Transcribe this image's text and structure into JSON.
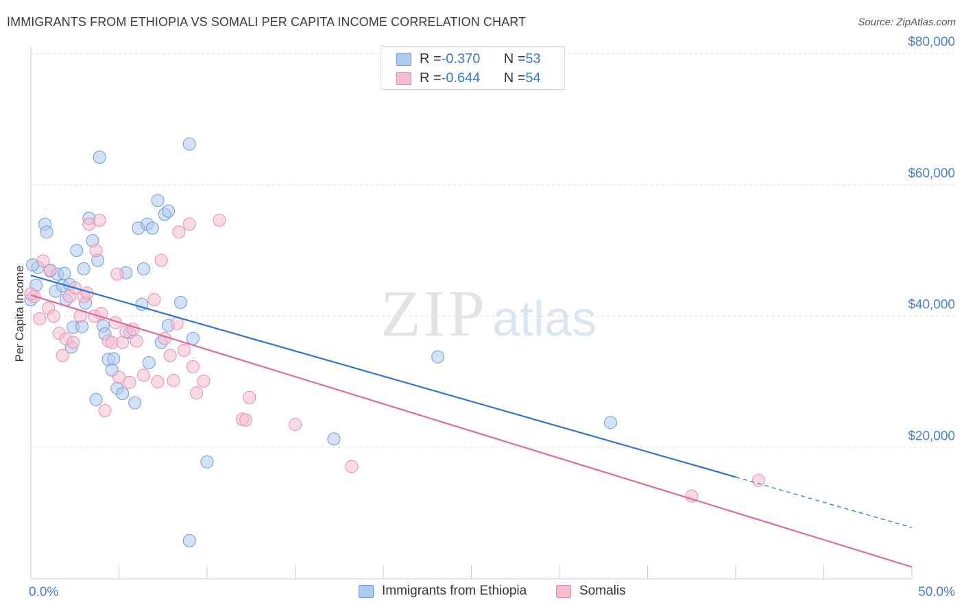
{
  "header": {
    "title": "IMMIGRANTS FROM ETHIOPIA VS SOMALI PER CAPITA INCOME CORRELATION CHART",
    "source": "Source: ZipAtlas.com"
  },
  "watermark": {
    "zip": "ZIP",
    "atlas": "atlas"
  },
  "legend": {
    "rows": [
      {
        "r_label": "R = ",
        "r_value": "-0.370",
        "n_label": "N = ",
        "n_value": "53"
      },
      {
        "r_label": "R = ",
        "r_value": "-0.644",
        "n_label": "N = ",
        "n_value": "54"
      }
    ]
  },
  "colors": {
    "ethiopia_fill": "#aecbf0",
    "ethiopia_stroke": "#6c9bd6",
    "ethiopia_line": "#2e74cf",
    "somali_fill": "#f6bcd0",
    "somali_stroke": "#e98aad",
    "somali_line": "#e06a93",
    "tick_text": "#4a7ec6",
    "grid": "#dddddd"
  },
  "chart_data": {
    "type": "scatter",
    "title": "IMMIGRANTS FROM ETHIOPIA VS SOMALI PER CAPITA INCOME CORRELATION CHART",
    "xlabel": "",
    "ylabel": "Per Capita Income",
    "xlim": [
      0,
      50
    ],
    "ylim": [
      0,
      80000
    ],
    "x_tick_labels": [
      "0.0%",
      "50.0%"
    ],
    "y_ticks": [
      20000,
      40000,
      60000,
      80000
    ],
    "y_tick_labels": [
      "$20,000",
      "$40,000",
      "$60,000",
      "$80,000"
    ],
    "grid": true,
    "legend_position": "top-center",
    "series": [
      {
        "name": "Immigrants from Ethiopia",
        "color": "#6c9bd6",
        "r": -0.37,
        "n": 53,
        "trend": {
          "x0": 0,
          "y0": 46200,
          "x1": 40,
          "y1": 15500,
          "dashed_to_x": 50,
          "dashed_to_y": 7800
        },
        "points": [
          [
            0.0,
            42500
          ],
          [
            0.3,
            44700
          ],
          [
            0.4,
            47400
          ],
          [
            0.8,
            54000
          ],
          [
            0.9,
            52800
          ],
          [
            1.1,
            46900
          ],
          [
            1.4,
            43800
          ],
          [
            1.5,
            46400
          ],
          [
            1.8,
            44600
          ],
          [
            1.9,
            46500
          ],
          [
            2.0,
            42500
          ],
          [
            2.3,
            35300
          ],
          [
            2.4,
            38300
          ],
          [
            2.6,
            50000
          ],
          [
            2.9,
            38400
          ],
          [
            3.0,
            47200
          ],
          [
            3.1,
            42000
          ],
          [
            3.3,
            54900
          ],
          [
            3.5,
            51500
          ],
          [
            3.7,
            27300
          ],
          [
            3.8,
            48500
          ],
          [
            3.9,
            64200
          ],
          [
            4.1,
            38500
          ],
          [
            4.2,
            37300
          ],
          [
            4.4,
            33400
          ],
          [
            4.6,
            31800
          ],
          [
            4.7,
            33500
          ],
          [
            4.9,
            29000
          ],
          [
            5.2,
            28200
          ],
          [
            5.4,
            46600
          ],
          [
            5.6,
            37500
          ],
          [
            5.9,
            26800
          ],
          [
            6.1,
            53400
          ],
          [
            6.3,
            41800
          ],
          [
            6.4,
            47200
          ],
          [
            6.6,
            54000
          ],
          [
            6.7,
            32900
          ],
          [
            6.9,
            53400
          ],
          [
            7.2,
            57600
          ],
          [
            7.4,
            36000
          ],
          [
            7.6,
            55500
          ],
          [
            7.8,
            56000
          ],
          [
            7.8,
            38600
          ],
          [
            8.5,
            42100
          ],
          [
            9.0,
            66200
          ],
          [
            9.2,
            36600
          ],
          [
            9.0,
            5800
          ],
          [
            10.0,
            17800
          ],
          [
            17.2,
            21300
          ],
          [
            23.1,
            33800
          ],
          [
            32.9,
            23800
          ],
          [
            0.1,
            47800
          ],
          [
            2.2,
            44800
          ]
        ]
      },
      {
        "name": "Somalis",
        "color": "#e98aad",
        "r": -0.644,
        "n": 54,
        "trend": {
          "x0": 0,
          "y0": 43200,
          "x1": 50,
          "y1": 1800
        },
        "points": [
          [
            0.2,
            43000
          ],
          [
            0.5,
            39600
          ],
          [
            0.7,
            48400
          ],
          [
            1.0,
            41200
          ],
          [
            1.1,
            47000
          ],
          [
            1.3,
            40000
          ],
          [
            1.6,
            37400
          ],
          [
            1.8,
            34000
          ],
          [
            2.0,
            36500
          ],
          [
            2.2,
            43000
          ],
          [
            2.4,
            36000
          ],
          [
            2.5,
            44300
          ],
          [
            2.8,
            40000
          ],
          [
            3.0,
            43000
          ],
          [
            3.2,
            43500
          ],
          [
            3.3,
            54000
          ],
          [
            3.6,
            40000
          ],
          [
            3.7,
            50000
          ],
          [
            3.9,
            54600
          ],
          [
            4.0,
            40400
          ],
          [
            4.2,
            25600
          ],
          [
            4.4,
            36200
          ],
          [
            4.6,
            36000
          ],
          [
            4.8,
            39000
          ],
          [
            4.9,
            46400
          ],
          [
            5.0,
            30700
          ],
          [
            5.2,
            36000
          ],
          [
            5.4,
            37600
          ],
          [
            5.6,
            29900
          ],
          [
            5.8,
            38000
          ],
          [
            6.0,
            36200
          ],
          [
            6.4,
            31000
          ],
          [
            7.0,
            42500
          ],
          [
            7.2,
            30000
          ],
          [
            7.4,
            48500
          ],
          [
            7.6,
            36600
          ],
          [
            7.9,
            34000
          ],
          [
            8.1,
            30200
          ],
          [
            8.3,
            38900
          ],
          [
            8.4,
            52800
          ],
          [
            8.7,
            34800
          ],
          [
            9.0,
            54000
          ],
          [
            9.2,
            32300
          ],
          [
            9.4,
            28300
          ],
          [
            9.8,
            30100
          ],
          [
            10.7,
            54600
          ],
          [
            12.0,
            24300
          ],
          [
            12.2,
            24200
          ],
          [
            12.4,
            27600
          ],
          [
            15.0,
            23500
          ],
          [
            18.2,
            17100
          ],
          [
            37.5,
            12600
          ],
          [
            41.3,
            15000
          ],
          [
            0.0,
            43400
          ]
        ]
      }
    ]
  },
  "bottom_legend": {
    "items": [
      {
        "label": "Immigrants from Ethiopia"
      },
      {
        "label": "Somalis"
      }
    ]
  }
}
